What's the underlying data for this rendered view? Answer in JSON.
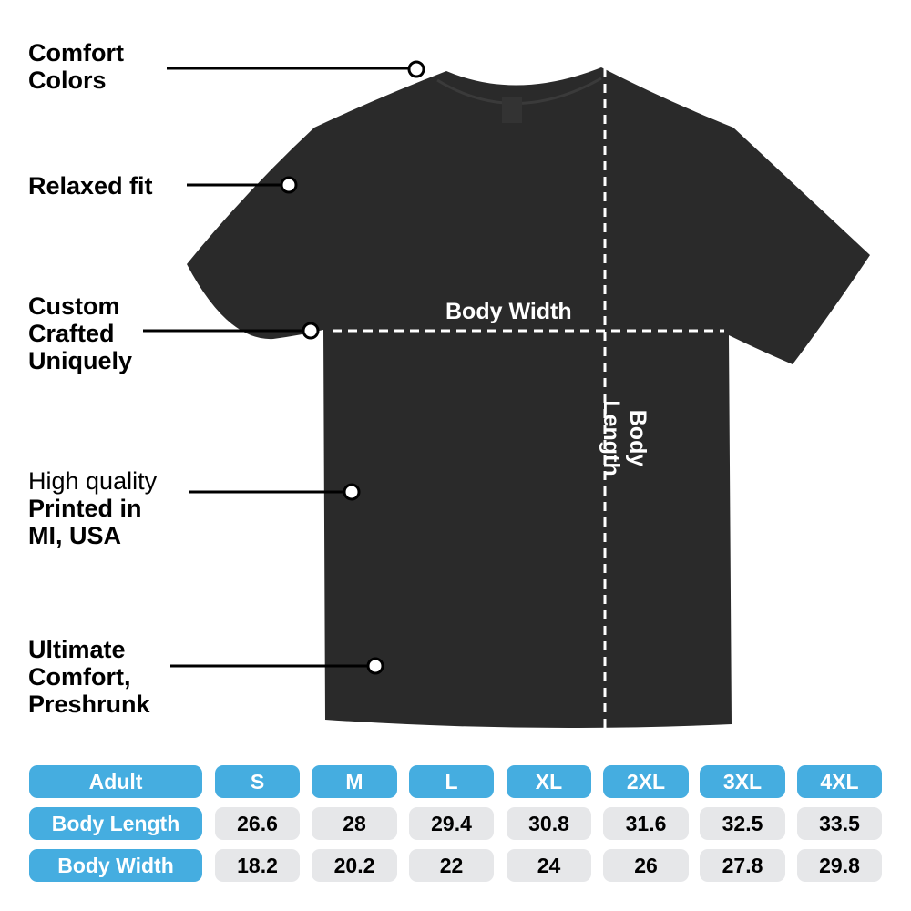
{
  "features": [
    {
      "lines": [
        "Comfort",
        "Colors"
      ]
    },
    {
      "lines": [
        "Relaxed fit"
      ]
    },
    {
      "lines": [
        "Custom",
        "Crafted",
        "Uniquely"
      ]
    },
    {
      "prefix": "High quality",
      "lines": [
        "Printed in",
        "MI, USA"
      ]
    },
    {
      "lines": [
        "Ultimate",
        "Comfort,",
        "Preshrunk"
      ]
    }
  ],
  "measurements": {
    "width_label": "Body Width",
    "length_label": "Body Length"
  },
  "size_table": {
    "header": [
      "Adult",
      "S",
      "M",
      "L",
      "XL",
      "2XL",
      "3XL",
      "4XL"
    ],
    "rows": [
      {
        "label": "Body Length",
        "values": [
          "26.6",
          "28",
          "29.4",
          "30.8",
          "31.6",
          "32.5",
          "33.5"
        ]
      },
      {
        "label": "Body Width",
        "values": [
          "18.2",
          "20.2",
          "22",
          "24",
          "26",
          "27.8",
          "29.8"
        ]
      }
    ]
  },
  "colors": {
    "header": "#45ade0",
    "value_cell": "#e6e7e9",
    "shirt": "#2b2b2b"
  }
}
